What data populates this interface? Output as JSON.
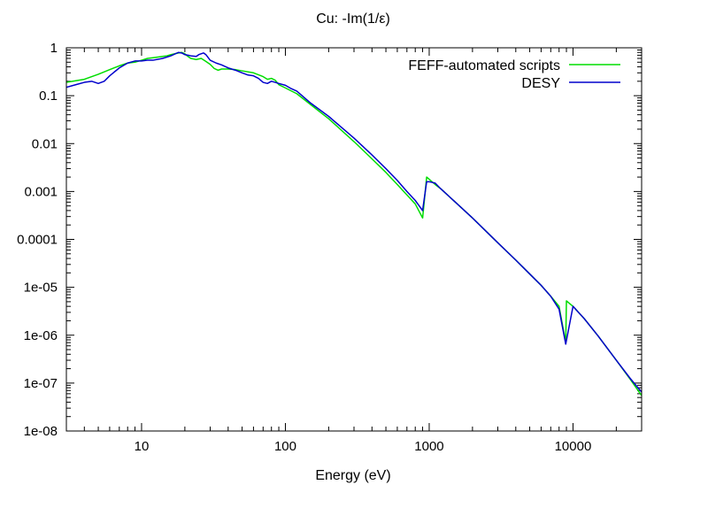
{
  "chart_data": {
    "type": "line",
    "title": "Cu: -Im(1/ε)",
    "xlabel": "Energy (eV)",
    "ylabel": "",
    "xscale": "log",
    "yscale": "log",
    "xlim": [
      3,
      30000
    ],
    "ylim": [
      1e-08,
      1
    ],
    "grid": false,
    "legend_position": "top-right",
    "x_ticks": [
      {
        "value": 10,
        "label": "10"
      },
      {
        "value": 100,
        "label": "100"
      },
      {
        "value": 1000,
        "label": "1000"
      },
      {
        "value": 10000,
        "label": "10000"
      }
    ],
    "y_ticks": [
      {
        "value": 1,
        "label": "1"
      },
      {
        "value": 0.1,
        "label": "0.1"
      },
      {
        "value": 0.01,
        "label": "0.01"
      },
      {
        "value": 0.001,
        "label": "0.001"
      },
      {
        "value": 0.0001,
        "label": "0.0001"
      },
      {
        "value": 1e-05,
        "label": "1e-05"
      },
      {
        "value": 1e-06,
        "label": "1e-06"
      },
      {
        "value": 1e-07,
        "label": "1e-07"
      },
      {
        "value": 1e-08,
        "label": "1e-08"
      }
    ],
    "series": [
      {
        "name": "FEFF-automated scripts",
        "color": "#00dd00",
        "points": [
          [
            3,
            0.19
          ],
          [
            4,
            0.22
          ],
          [
            5,
            0.28
          ],
          [
            6,
            0.35
          ],
          [
            7,
            0.42
          ],
          [
            8,
            0.48
          ],
          [
            9,
            0.5
          ],
          [
            10,
            0.55
          ],
          [
            11,
            0.6
          ],
          [
            12,
            0.62
          ],
          [
            13,
            0.64
          ],
          [
            14,
            0.66
          ],
          [
            15,
            0.68
          ],
          [
            16,
            0.72
          ],
          [
            18,
            0.78
          ],
          [
            19,
            0.8
          ],
          [
            20,
            0.75
          ],
          [
            21,
            0.66
          ],
          [
            22,
            0.6
          ],
          [
            24,
            0.57
          ],
          [
            26,
            0.6
          ],
          [
            28,
            0.52
          ],
          [
            30,
            0.45
          ],
          [
            32,
            0.37
          ],
          [
            34,
            0.34
          ],
          [
            36,
            0.36
          ],
          [
            40,
            0.36
          ],
          [
            45,
            0.35
          ],
          [
            50,
            0.33
          ],
          [
            60,
            0.3
          ],
          [
            70,
            0.25
          ],
          [
            75,
            0.22
          ],
          [
            80,
            0.23
          ],
          [
            85,
            0.21
          ],
          [
            90,
            0.17
          ],
          [
            100,
            0.145
          ],
          [
            120,
            0.11
          ],
          [
            150,
            0.065
          ],
          [
            200,
            0.033
          ],
          [
            300,
            0.011
          ],
          [
            400,
            0.0048
          ],
          [
            500,
            0.0025
          ],
          [
            600,
            0.0014
          ],
          [
            700,
            0.00085
          ],
          [
            800,
            0.00055
          ],
          [
            900,
            0.00028
          ],
          [
            900.1,
            0.00028
          ],
          [
            960,
            0.002
          ],
          [
            1000,
            0.0018
          ],
          [
            1100,
            0.0014
          ],
          [
            1200,
            0.00115
          ],
          [
            1500,
            0.00062
          ],
          [
            2000,
            0.00028
          ],
          [
            3000,
            8.5e-05
          ],
          [
            4000,
            3.7e-05
          ],
          [
            5000,
            1.9e-05
          ],
          [
            6000,
            1.1e-05
          ],
          [
            7000,
            6.5e-06
          ],
          [
            8000,
            4e-06
          ],
          [
            8900,
            7e-07
          ],
          [
            8900.1,
            7e-07
          ],
          [
            9000,
            5.2e-06
          ],
          [
            10000,
            4e-06
          ],
          [
            12000,
            2.2e-06
          ],
          [
            15000,
            9.5e-07
          ],
          [
            20000,
            3e-07
          ],
          [
            25000,
            1.2e-07
          ],
          [
            30000,
            5.5e-08
          ]
        ]
      },
      {
        "name": "DESY",
        "color": "#0000cc",
        "points": [
          [
            3,
            0.15
          ],
          [
            3.5,
            0.17
          ],
          [
            4,
            0.19
          ],
          [
            4.5,
            0.2
          ],
          [
            5,
            0.18
          ],
          [
            5.5,
            0.2
          ],
          [
            6,
            0.26
          ],
          [
            7,
            0.38
          ],
          [
            8,
            0.48
          ],
          [
            9,
            0.53
          ],
          [
            10,
            0.53
          ],
          [
            11,
            0.55
          ],
          [
            12,
            0.55
          ],
          [
            14,
            0.6
          ],
          [
            16,
            0.68
          ],
          [
            18,
            0.8
          ],
          [
            19,
            0.78
          ],
          [
            20,
            0.72
          ],
          [
            21,
            0.7
          ],
          [
            22,
            0.68
          ],
          [
            24,
            0.66
          ],
          [
            25,
            0.72
          ],
          [
            27,
            0.78
          ],
          [
            28,
            0.72
          ],
          [
            30,
            0.55
          ],
          [
            33,
            0.48
          ],
          [
            36,
            0.44
          ],
          [
            40,
            0.38
          ],
          [
            45,
            0.34
          ],
          [
            50,
            0.3
          ],
          [
            55,
            0.27
          ],
          [
            60,
            0.26
          ],
          [
            65,
            0.23
          ],
          [
            70,
            0.19
          ],
          [
            75,
            0.18
          ],
          [
            80,
            0.2
          ],
          [
            85,
            0.19
          ],
          [
            90,
            0.18
          ],
          [
            100,
            0.165
          ],
          [
            110,
            0.14
          ],
          [
            120,
            0.125
          ],
          [
            150,
            0.07
          ],
          [
            200,
            0.037
          ],
          [
            300,
            0.013
          ],
          [
            400,
            0.0058
          ],
          [
            500,
            0.003
          ],
          [
            600,
            0.0017
          ],
          [
            700,
            0.001
          ],
          [
            800,
            0.00065
          ],
          [
            900,
            0.0004
          ],
          [
            960,
            0.0016
          ],
          [
            1000,
            0.0016
          ],
          [
            1100,
            0.0015
          ],
          [
            1200,
            0.00115
          ],
          [
            1500,
            0.00062
          ],
          [
            2000,
            0.00028
          ],
          [
            3000,
            8.5e-05
          ],
          [
            4000,
            3.7e-05
          ],
          [
            5000,
            1.9e-05
          ],
          [
            6000,
            1.1e-05
          ],
          [
            7000,
            6.5e-06
          ],
          [
            8000,
            3.5e-06
          ],
          [
            8900,
            6.5e-07
          ],
          [
            10000,
            4e-06
          ],
          [
            12000,
            2.2e-06
          ],
          [
            15000,
            9.5e-07
          ],
          [
            20000,
            3e-07
          ],
          [
            25000,
            1.25e-07
          ],
          [
            30000,
            6.5e-08
          ]
        ]
      }
    ]
  }
}
